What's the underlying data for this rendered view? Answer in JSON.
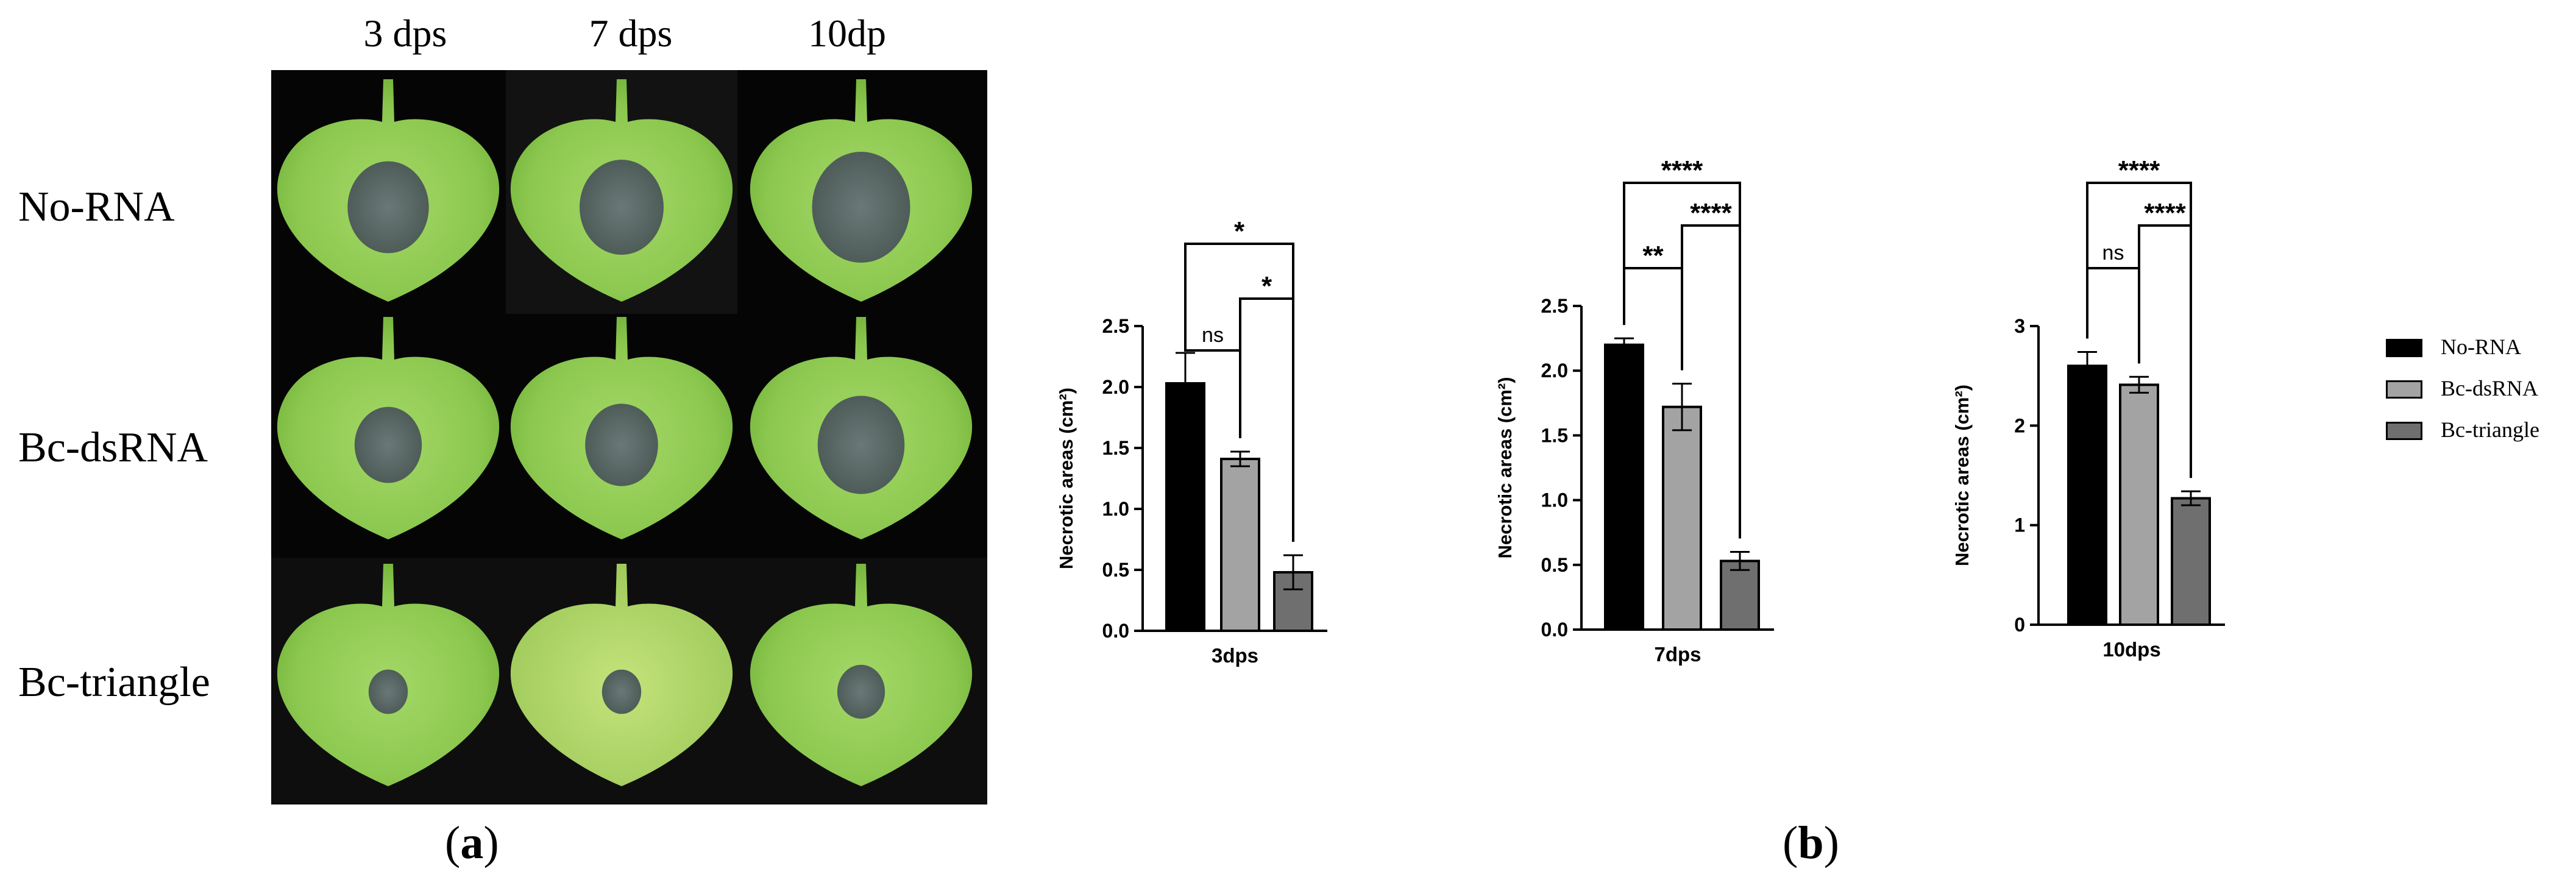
{
  "panel_a": {
    "columns": [
      "3 dps",
      "7 dps",
      "10dp"
    ],
    "rows": [
      "No-RNA",
      "Bc-dsRNA",
      "Bc-triangle"
    ],
    "label": "(a)",
    "label_letter": "a"
  },
  "panel_b": {
    "label": "(b)",
    "label_letter": "b"
  },
  "legend": [
    {
      "name": "No-RNA",
      "color": "#000000"
    },
    {
      "name": "Bc-dsRNA",
      "color": "#a3a3a3"
    },
    {
      "name": "Bc-triangle",
      "color": "#6f6f6f"
    }
  ],
  "chart_data": [
    {
      "type": "bar",
      "xlabel": "3dps",
      "ylabel": "Necrotic areas (cm²)",
      "ylim": [
        0,
        2.5
      ],
      "yticks": [
        "0.0",
        "0.5",
        "1.0",
        "1.5",
        "2.0",
        "2.5"
      ],
      "categories": [
        "No-RNA",
        "Bc-dsRNA",
        "Bc-triangle"
      ],
      "values": [
        2.03,
        1.41,
        0.48
      ],
      "errors": [
        0.25,
        0.06,
        0.14
      ],
      "comparisons": [
        {
          "from": 0,
          "to": 1,
          "label": "ns"
        },
        {
          "from": 1,
          "to": 2,
          "label": "*"
        },
        {
          "from": 0,
          "to": 2,
          "label": "*"
        }
      ]
    },
    {
      "type": "bar",
      "xlabel": "7dps",
      "ylabel": "Necrotic areas (cm²)",
      "ylim": [
        0,
        2.5
      ],
      "yticks": [
        "0.0",
        "0.5",
        "1.0",
        "1.5",
        "2.0",
        "2.5"
      ],
      "categories": [
        "No-RNA",
        "Bc-dsRNA",
        "Bc-triangle"
      ],
      "values": [
        2.2,
        1.72,
        0.53
      ],
      "errors": [
        0.05,
        0.18,
        0.07
      ],
      "comparisons": [
        {
          "from": 0,
          "to": 1,
          "label": "**"
        },
        {
          "from": 1,
          "to": 2,
          "label": "****"
        },
        {
          "from": 0,
          "to": 2,
          "label": "****"
        }
      ]
    },
    {
      "type": "bar",
      "xlabel": "10dps",
      "ylabel": "Necrotic areas (cm²)",
      "ylim": [
        0,
        3
      ],
      "yticks": [
        "0",
        "1",
        "2",
        "3"
      ],
      "categories": [
        "No-RNA",
        "Bc-dsRNA",
        "Bc-triangle"
      ],
      "values": [
        2.6,
        2.41,
        1.27
      ],
      "errors": [
        0.14,
        0.08,
        0.07
      ],
      "comparisons": [
        {
          "from": 0,
          "to": 1,
          "label": "ns"
        },
        {
          "from": 1,
          "to": 2,
          "label": "****"
        },
        {
          "from": 0,
          "to": 2,
          "label": "****"
        }
      ]
    }
  ]
}
